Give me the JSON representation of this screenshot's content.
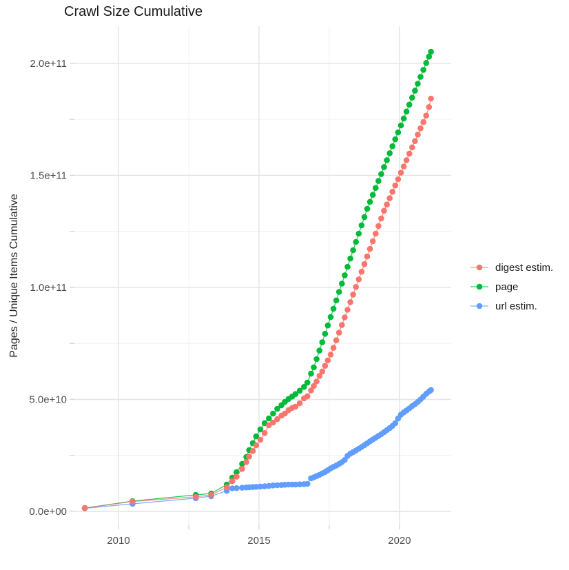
{
  "page_title": "Crawl Size Cumulative",
  "colors": {
    "digest": "#F8766D",
    "page": "#00BA38",
    "url": "#619CFF",
    "grid_major": "#E3E3E3",
    "grid_minor": "#F0F0F0",
    "tick": "#D4D4D4",
    "axis_text": "#4D4D4D",
    "title_text": "#1a1a1a"
  },
  "chart_data": {
    "type": "scatter",
    "line": true,
    "title": "Crawl Size Cumulative",
    "xlabel": "",
    "ylabel": "Pages / Unique Items Cumulative",
    "legend_position": "right",
    "grid": true,
    "xlim": [
      2008.43,
      2021.84
    ],
    "ylim_e9": [
      -6.15,
      216.6
    ],
    "x_ticks": [
      {
        "value": 2010,
        "label": "2010"
      },
      {
        "value": 2015,
        "label": "2015"
      },
      {
        "value": 2020,
        "label": "2020"
      }
    ],
    "x_minor": [
      2012.5,
      2017.5
    ],
    "y_ticks": [
      {
        "value_e9": 0,
        "label": "0.0e+00"
      },
      {
        "value_e9": 50,
        "label": "5.0e+10"
      },
      {
        "value_e9": 100,
        "label": "1.0e+11"
      },
      {
        "value_e9": 150,
        "label": "1.5e+11"
      },
      {
        "value_e9": 200,
        "label": "2.0e+11"
      }
    ],
    "y_minor_e9": [
      25,
      75,
      125,
      175
    ],
    "x_years": [
      2008.8,
      2010.5,
      2012.75,
      2013.3,
      2013.85,
      2014.05,
      2014.2,
      2014.4,
      2014.55,
      2014.65,
      2014.78,
      2014.9,
      2015.05,
      2015.2,
      2015.35,
      2015.5,
      2015.65,
      2015.8,
      2015.92,
      2016.05,
      2016.18,
      2016.3,
      2016.45,
      2016.6,
      2016.72,
      2016.85,
      2016.95,
      2017.05,
      2017.15,
      2017.25,
      2017.35,
      2017.45,
      2017.55,
      2017.65,
      2017.75,
      2017.85,
      2017.95,
      2018.05,
      2018.15,
      2018.25,
      2018.35,
      2018.45,
      2018.55,
      2018.65,
      2018.75,
      2018.85,
      2018.95,
      2019.05,
      2019.15,
      2019.25,
      2019.35,
      2019.45,
      2019.55,
      2019.65,
      2019.75,
      2019.85,
      2019.95,
      2020.05,
      2020.15,
      2020.25,
      2020.35,
      2020.45,
      2020.55,
      2020.65,
      2020.75,
      2020.85,
      2020.95,
      2021.05,
      2021.12
    ],
    "series": [
      {
        "name": "digest estim.",
        "color": "#F8766D",
        "values_e9": [
          1.5,
          4.4,
          6.5,
          7.4,
          10.8,
          13.5,
          15.5,
          19.0,
          22.0,
          24.5,
          27.0,
          29.5,
          32.0,
          35.0,
          38.5,
          39.7,
          41.2,
          42.8,
          43.7,
          45.2,
          46.2,
          46.8,
          48.3,
          50.5,
          51.4,
          54.0,
          56.0,
          58.0,
          60.5,
          62.5,
          65.0,
          67.4,
          70.0,
          73.0,
          76.4,
          79.8,
          83.2,
          86.6,
          90.0,
          93.4,
          96.8,
          100.2,
          103.6,
          107.0,
          110.4,
          113.8,
          117.2,
          120.6,
          124.0,
          127.4,
          130.8,
          134.2,
          137.0,
          139.8,
          142.7,
          145.5,
          148.3,
          151.2,
          154.0,
          156.8,
          159.7,
          162.5,
          165.3,
          168.2,
          171.0,
          173.8,
          176.7,
          180.5,
          184.3
        ]
      },
      {
        "name": "page",
        "color": "#00BA38",
        "values_e9": [
          1.5,
          4.6,
          7.4,
          8.0,
          12.0,
          15.1,
          17.5,
          21.2,
          24.3,
          27.4,
          30.5,
          33.5,
          36.6,
          39.4,
          41.5,
          43.7,
          45.8,
          47.4,
          48.9,
          50.2,
          51.3,
          52.4,
          53.9,
          55.6,
          57.5,
          61.5,
          64.3,
          68.0,
          71.8,
          75.5,
          79.3,
          83.0,
          86.8,
          90.5,
          94.2,
          98.0,
          101.7,
          105.4,
          109.2,
          112.9,
          116.6,
          120.3,
          124.0,
          127.7,
          131.4,
          135.1,
          138.2,
          141.3,
          144.4,
          147.5,
          150.6,
          153.7,
          156.8,
          159.9,
          163.0,
          166.1,
          169.2,
          172.3,
          175.4,
          178.5,
          181.6,
          184.7,
          187.8,
          190.9,
          194.0,
          197.1,
          200.2,
          203.0,
          205.2
        ]
      },
      {
        "name": "url estim.",
        "color": "#619CFF",
        "values_e9": [
          1.4,
          3.4,
          5.9,
          6.8,
          9.2,
          10.3,
          10.4,
          10.6,
          10.7,
          10.8,
          10.9,
          11.0,
          11.1,
          11.2,
          11.4,
          11.6,
          11.7,
          11.8,
          11.9,
          12.0,
          12.0,
          12.0,
          12.1,
          12.2,
          12.3,
          14.8,
          15.2,
          15.8,
          16.3,
          17.0,
          17.6,
          18.4,
          19.2,
          19.9,
          20.5,
          21.2,
          22.0,
          23.0,
          24.8,
          25.8,
          26.5,
          27.2,
          28.0,
          28.8,
          29.6,
          30.4,
          31.3,
          32.1,
          32.9,
          33.7,
          34.5,
          35.4,
          36.3,
          37.2,
          38.2,
          39.4,
          41.5,
          43.2,
          44.2,
          45.1,
          46.0,
          47.0,
          47.9,
          48.9,
          50.0,
          51.2,
          52.5,
          53.5,
          54.2
        ]
      }
    ],
    "draw_order": [
      2,
      1,
      0
    ]
  }
}
